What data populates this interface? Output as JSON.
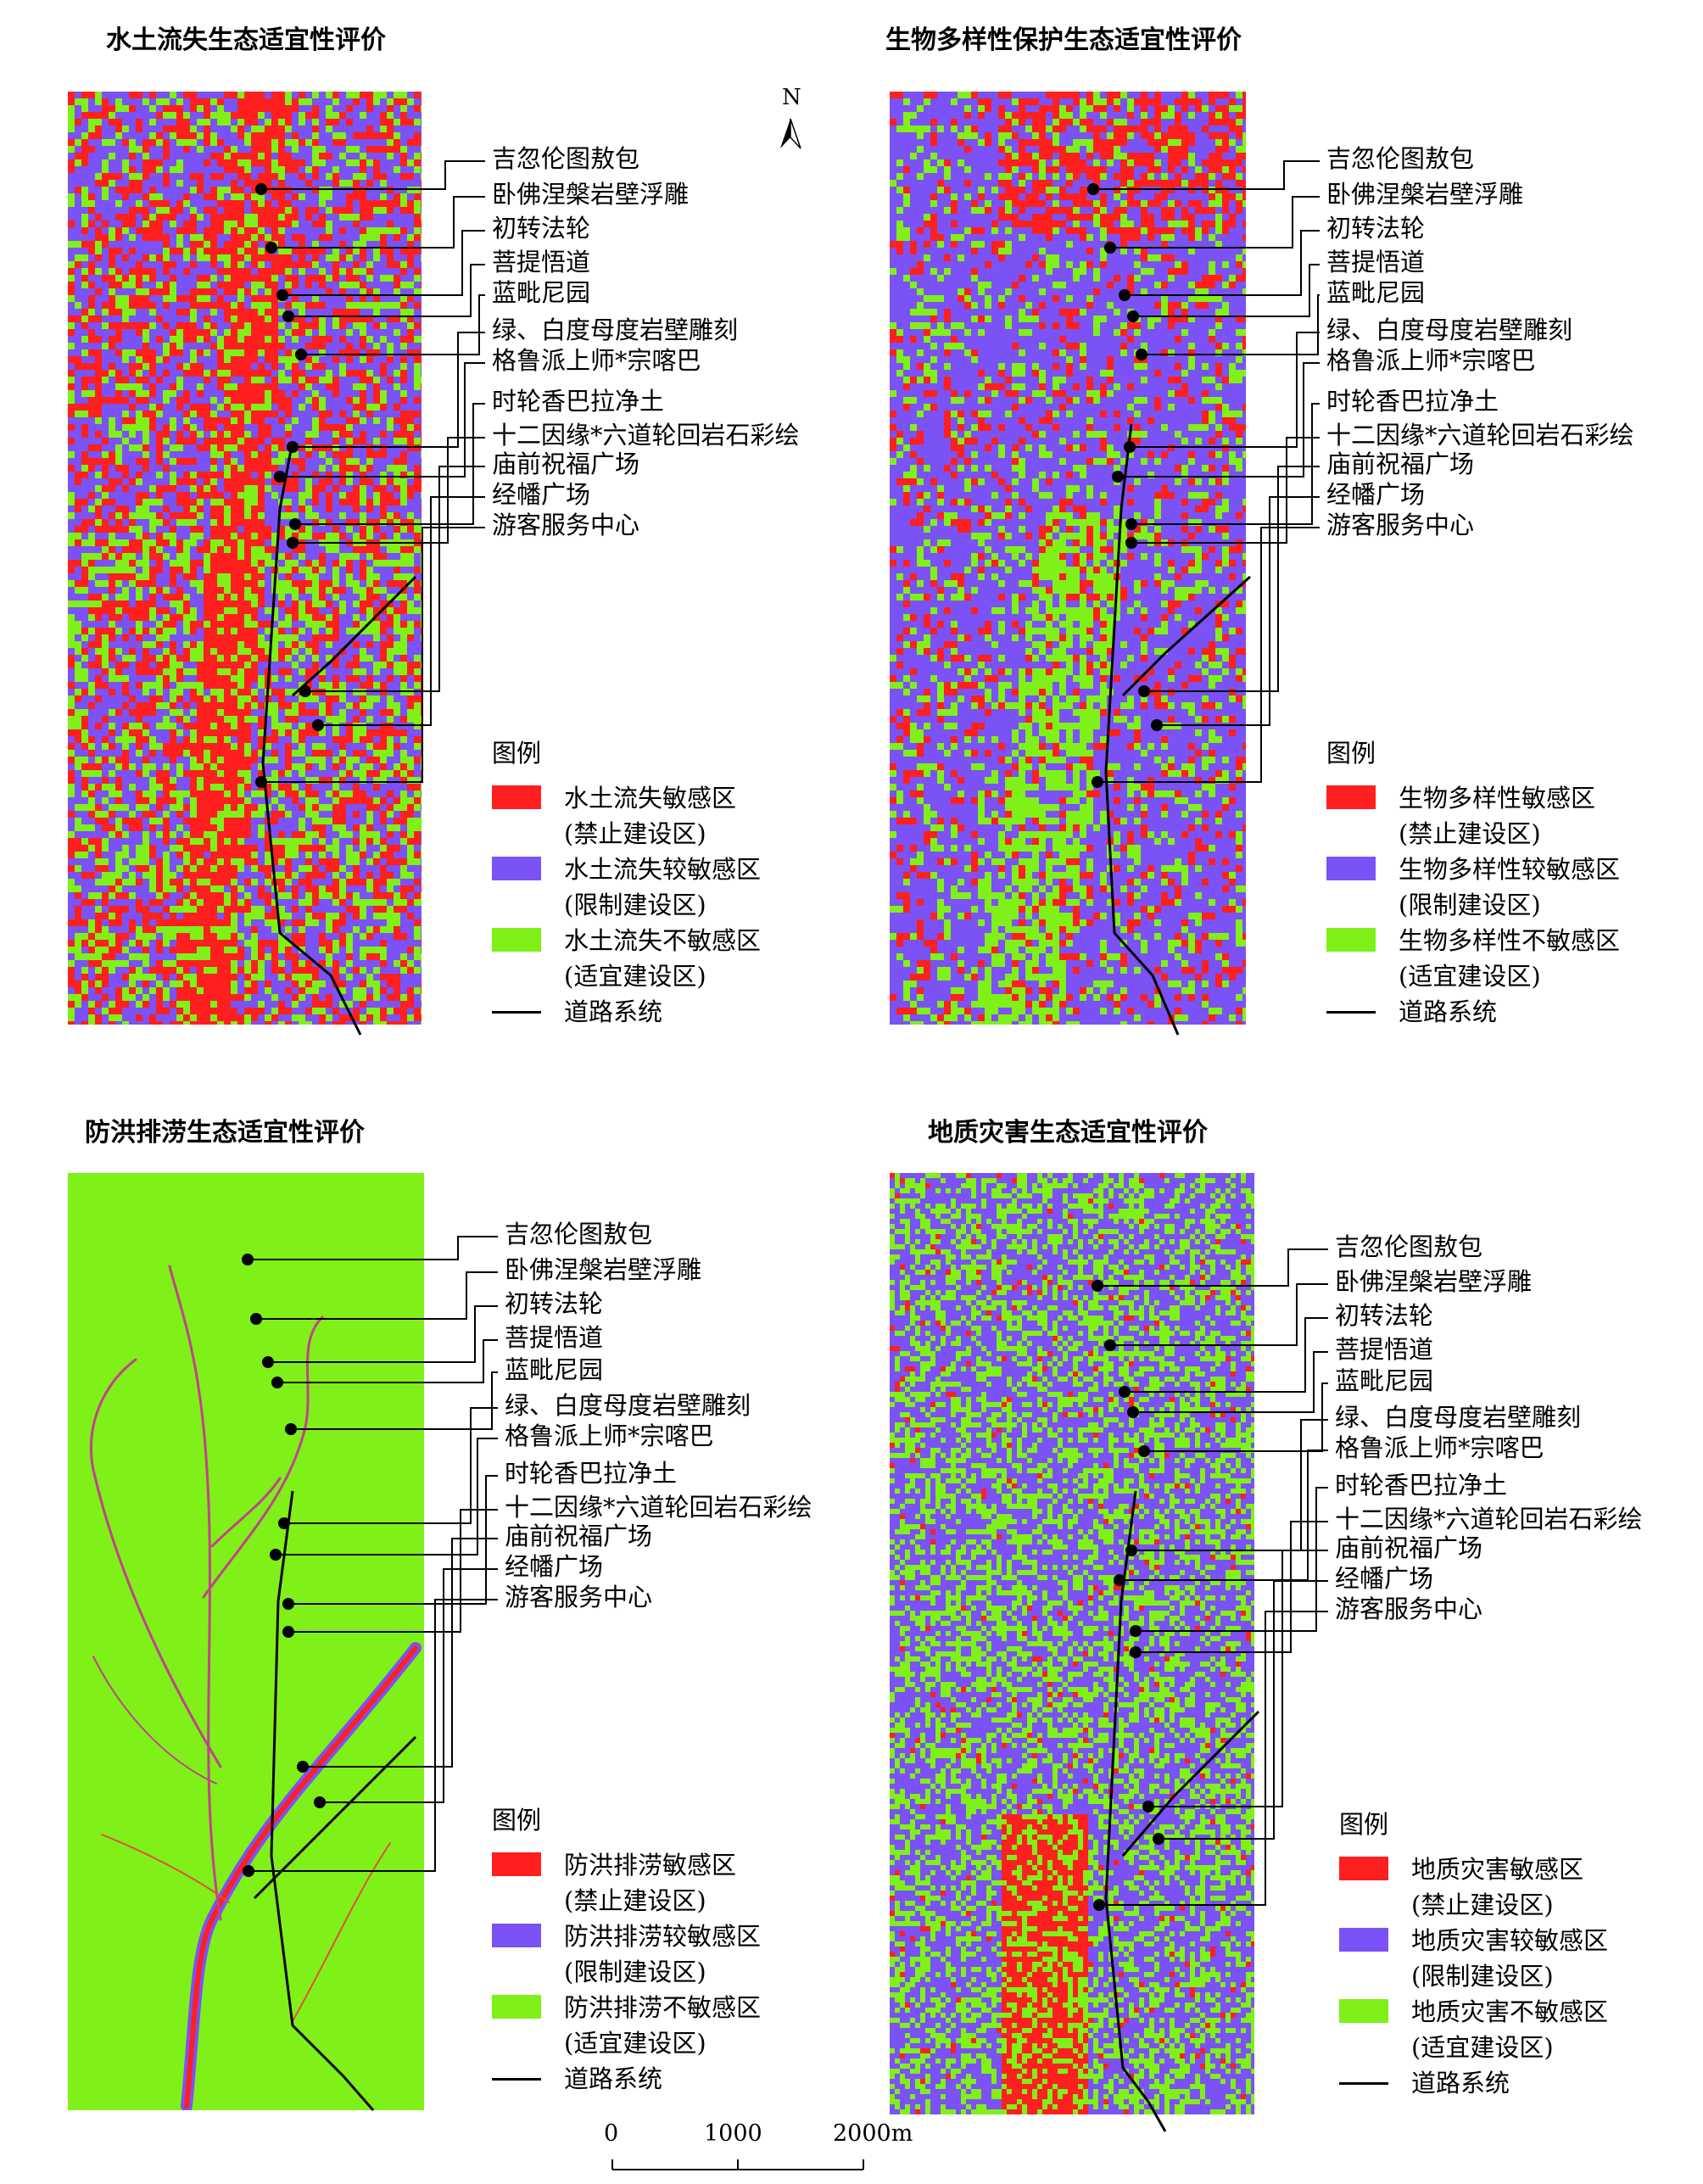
{
  "colors": {
    "red": "#ff1f1f",
    "purple": "#7b52f5",
    "green": "#7ff018",
    "road": "#000000",
    "river": "#c0448a"
  },
  "north_label": "N",
  "scale": {
    "t0": "0",
    "t1": "1000",
    "t2": "2000m"
  },
  "sites": [
    "吉忽伦图敖包",
    "卧佛涅槃岩壁浮雕",
    "初转法轮",
    "菩提悟道",
    "蓝毗尼园",
    "绿、白度母度岩壁雕刻",
    "格鲁派上师*宗喀巴",
    "时轮香巴拉净土",
    "十二因缘*六道轮回岩石彩绘",
    "庙前祝福广场",
    "经幡广场",
    "游客服务中心"
  ],
  "panels": [
    {
      "title": "水土流失生态适宜性评价",
      "legend_title": "图例",
      "legend": [
        {
          "label": "水土流失敏感区",
          "sub": "(禁止建设区)",
          "color": "#ff1f1f"
        },
        {
          "label": "水土流失较敏感区",
          "sub": "(限制建设区)",
          "color": "#7b52f5"
        },
        {
          "label": "水土流失不敏感区",
          "sub": "(适宜建设区)",
          "color": "#7ff018"
        }
      ],
      "road_label": "道路系统"
    },
    {
      "title": "生物多样性保护生态适宜性评价",
      "legend_title": "图例",
      "legend": [
        {
          "label": "生物多样性敏感区",
          "sub": "(禁止建设区)",
          "color": "#ff1f1f"
        },
        {
          "label": "生物多样性较敏感区",
          "sub": "(限制建设区)",
          "color": "#7b52f5"
        },
        {
          "label": "生物多样性不敏感区",
          "sub": "(适宜建设区)",
          "color": "#7ff018"
        }
      ],
      "road_label": "道路系统"
    },
    {
      "title": "防洪排涝生态适宜性评价",
      "legend_title": "图例",
      "legend": [
        {
          "label": "防洪排涝敏感区",
          "sub": "(禁止建设区)",
          "color": "#ff1f1f"
        },
        {
          "label": "防洪排涝较敏感区",
          "sub": "(限制建设区)",
          "color": "#7b52f5"
        },
        {
          "label": "防洪排涝不敏感区",
          "sub": "(适宜建设区)",
          "color": "#7ff018"
        }
      ],
      "road_label": "道路系统"
    },
    {
      "title": "地质灾害生态适宜性评价",
      "legend_title": "图例",
      "legend": [
        {
          "label": "地质灾害敏感区",
          "sub": "(禁止建设区)",
          "color": "#ff1f1f"
        },
        {
          "label": "地质灾害较敏感区",
          "sub": "(限制建设区)",
          "color": "#7b52f5"
        },
        {
          "label": "地质灾害不敏感区",
          "sub": "(适宜建设区)",
          "color": "#7ff018"
        }
      ],
      "road_label": "道路系统"
    }
  ]
}
